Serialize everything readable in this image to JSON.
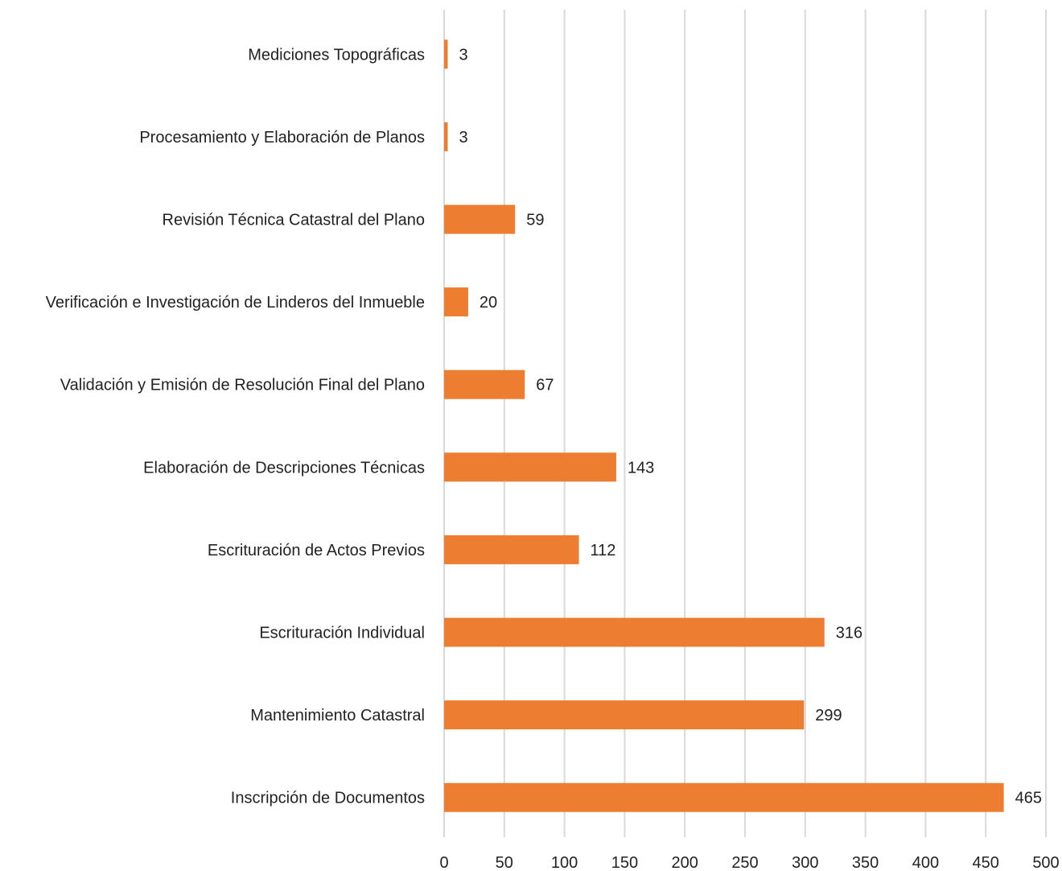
{
  "chart_data": {
    "type": "bar",
    "orientation": "horizontal",
    "title": "",
    "xlabel": "",
    "ylabel": "",
    "categories": [
      "Mediciones Topográficas",
      "Procesamiento y Elaboración de Planos",
      "Revisión Técnica Catastral del Plano",
      "Verificación e Investigación de Linderos del Inmueble",
      "Validación y Emisión de Resolución Final del Plano",
      "Elaboración de Descripciones Técnicas",
      "Escrituración de Actos Previos",
      "Escrituración Individual",
      "Mantenimiento Catastral",
      "Inscripción de Documentos"
    ],
    "values": [
      3,
      3,
      59,
      20,
      67,
      143,
      112,
      316,
      299,
      465
    ],
    "xlim": [
      0,
      500
    ],
    "xticks": [
      "0",
      "50",
      "100",
      "150",
      "200",
      "250",
      "300",
      "350",
      "400",
      "450",
      "500"
    ],
    "grid": "vertical",
    "legend": "none",
    "bar_color": "#ED7D31",
    "grid_color": "#D9D9D9"
  }
}
